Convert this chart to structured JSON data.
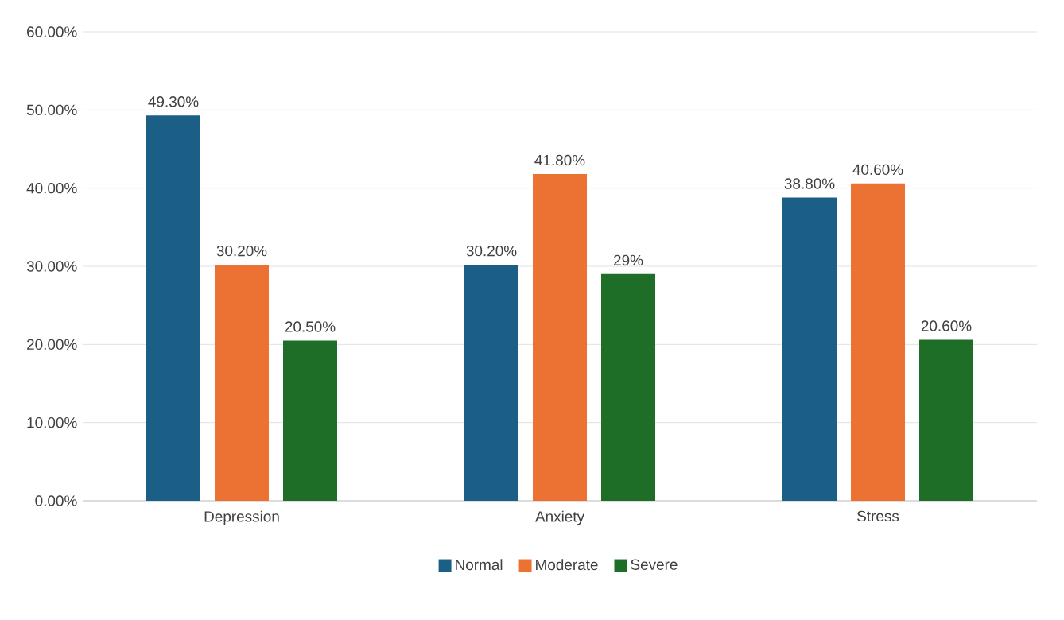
{
  "chart_data": {
    "type": "bar",
    "categories": [
      "Depression",
      "Anxiety",
      "Stress"
    ],
    "series": [
      {
        "name": "Normal",
        "color": "#1b5f86",
        "values": [
          49.3,
          30.2,
          38.8
        ],
        "value_labels": [
          "49.30%",
          "30.20%",
          "38.80%"
        ]
      },
      {
        "name": "Moderate",
        "color": "#eb7232",
        "values": [
          30.2,
          41.8,
          40.6
        ],
        "value_labels": [
          "30.20%",
          "41.80%",
          "40.60%"
        ]
      },
      {
        "name": "Severe",
        "color": "#1e6e27",
        "values": [
          20.5,
          29,
          20.6
        ],
        "value_labels": [
          "20.50%",
          "29%",
          "20.60%"
        ]
      }
    ],
    "ylim": [
      0,
      60
    ],
    "yticks": [
      {
        "value": 0,
        "label": "0.00%"
      },
      {
        "value": 10,
        "label": "10.00%"
      },
      {
        "value": 20,
        "label": "20.00%"
      },
      {
        "value": 30,
        "label": "30.00%"
      },
      {
        "value": 40,
        "label": "40.00%"
      },
      {
        "value": 50,
        "label": "50.00%"
      },
      {
        "value": 60,
        "label": "60.00%"
      }
    ],
    "grid": "y",
    "legend": "bottom"
  }
}
